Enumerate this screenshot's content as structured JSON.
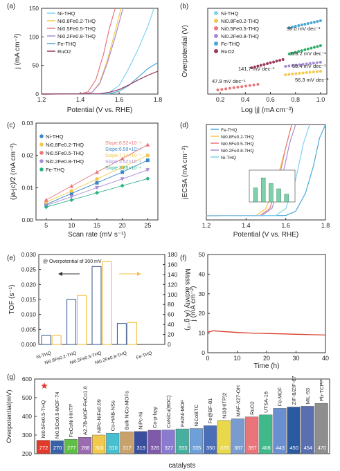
{
  "colors": {
    "ni": "#7fd3f0",
    "ni08fe02": "#f2c94c",
    "ni05fe05": "#e9747a",
    "ni02fe08": "#a78bd4",
    "fe": "#4aa8d8",
    "ruo2": "#9b3b5c",
    "tof_bar": "#2f4f8f",
    "mass_bar": "#f5c24a",
    "stability": "#d93a2a",
    "star": "#e23a2a"
  },
  "chart_data": [
    {
      "panel": "(a)",
      "type": "line",
      "xlabel": "Potential (V vs. RHE)",
      "ylabel": "j (mA cm⁻²)",
      "xlim": [
        1.2,
        1.8
      ],
      "ylim": [
        0,
        150
      ],
      "xticks": [
        "1.2",
        "1.4",
        "1.6",
        "1.8"
      ],
      "yticks": [
        "0",
        "50",
        "100",
        "150"
      ],
      "legend": "top-left",
      "series": [
        {
          "name": "Ni-THQ",
          "color": "#7fd3f0",
          "points": [
            [
              1.2,
              0
            ],
            [
              1.5,
              0.5
            ],
            [
              1.55,
              3
            ],
            [
              1.6,
              15
            ],
            [
              1.65,
              45
            ],
            [
              1.7,
              80
            ],
            [
              1.75,
              120
            ],
            [
              1.78,
              150
            ]
          ]
        },
        {
          "name": "Ni0.8Fe0.2-THQ",
          "color": "#f2c94c",
          "points": [
            [
              1.2,
              0
            ],
            [
              1.42,
              0.5
            ],
            [
              1.46,
              3
            ],
            [
              1.5,
              20
            ],
            [
              1.54,
              60
            ],
            [
              1.58,
              110
            ],
            [
              1.61,
              150
            ]
          ]
        },
        {
          "name": "Ni0.5Fe0.5-THQ",
          "color": "#e9747a",
          "points": [
            [
              1.2,
              0
            ],
            [
              1.4,
              0.5
            ],
            [
              1.44,
              4
            ],
            [
              1.48,
              25
            ],
            [
              1.52,
              70
            ],
            [
              1.55,
              115
            ],
            [
              1.58,
              150
            ]
          ]
        },
        {
          "name": "Ni0.2Fe0.8-THQ",
          "color": "#a78bd4",
          "points": [
            [
              1.2,
              0
            ],
            [
              1.42,
              0.5
            ],
            [
              1.46,
              3
            ],
            [
              1.5,
              18
            ],
            [
              1.54,
              55
            ],
            [
              1.58,
              100
            ],
            [
              1.62,
              150
            ]
          ]
        },
        {
          "name": "Fe-THQ",
          "color": "#4aa8d8",
          "points": [
            [
              1.2,
              0
            ],
            [
              1.55,
              0.5
            ],
            [
              1.6,
              5
            ],
            [
              1.65,
              15
            ],
            [
              1.7,
              30
            ],
            [
              1.75,
              45
            ],
            [
              1.8,
              55
            ]
          ]
        },
        {
          "name": "RuO2",
          "color": "#9b3b5c",
          "points": [
            [
              1.2,
              0
            ],
            [
              1.5,
              0.5
            ],
            [
              1.55,
              3
            ],
            [
              1.6,
              8
            ],
            [
              1.65,
              16
            ],
            [
              1.7,
              25
            ],
            [
              1.75,
              33
            ],
            [
              1.8,
              40
            ]
          ]
        }
      ]
    },
    {
      "panel": "(b)",
      "type": "scatter",
      "xlabel": "Log |j| (mA cm⁻²)",
      "ylabel": "Overpotential (V)",
      "xlim": [
        0.1,
        1.05
      ],
      "xticks": [
        "0.2",
        "0.4",
        "0.6",
        "0.8",
        "1.0"
      ],
      "legend": "top-left",
      "series": [
        {
          "name": "Ni-THQ",
          "color": "#7fd3f0"
        },
        {
          "name": "Ni0.8Fe0.2-THQ",
          "color": "#f2c94c"
        },
        {
          "name": "Ni0.5Fe0.5-THQ",
          "color": "#e9747a"
        },
        {
          "name": "Ni0.2Fe0.8-THQ",
          "color": "#a78bd4"
        },
        {
          "name": "Fe-THQ",
          "color": "#4aa8d8"
        },
        {
          "name": "RuO2",
          "color": "#9b3b5c"
        }
      ],
      "segments": [
        {
          "color": "#4aa8d8",
          "x": [
            0.75,
            1.0
          ],
          "label": "98.0 mV dec⁻¹"
        },
        {
          "color": "#2eae6a",
          "x": [
            0.75,
            1.0
          ],
          "label": "128.2 mV dec⁻¹"
        },
        {
          "color": "#9b3b5c",
          "x": [
            0.45,
            0.7
          ],
          "label": "141.7 mV dec⁻¹"
        },
        {
          "color": "#a78bd4",
          "x": [
            0.72,
            1.0
          ],
          "label": "58.4 mV dec⁻¹"
        },
        {
          "color": "#f2c94c",
          "x": [
            0.72,
            1.0
          ],
          "label": "56.3 mV dec⁻¹"
        },
        {
          "color": "#e9747a",
          "x": [
            0.18,
            0.5
          ],
          "label": "47.9 mV dec⁻¹"
        }
      ]
    },
    {
      "panel": "(c)",
      "type": "scatter",
      "xlabel": "Scan rate (mV s⁻¹)",
      "ylabel": "(ja-jc)/2 (mA cm⁻²)",
      "xlim": [
        3,
        27
      ],
      "ylim": [
        0,
        0.03
      ],
      "xticks": [
        "5",
        "10",
        "15",
        "20",
        "25"
      ],
      "yticks": [
        "0.00",
        "0.01",
        "0.02",
        "0.03"
      ],
      "legend": "top-left",
      "x": [
        5,
        10,
        15,
        20,
        25
      ],
      "series": [
        {
          "name": "Ni-THQ",
          "color": "#3b86c6",
          "marker": "square",
          "values": [
            0.0048,
            0.0082,
            0.0115,
            0.0148,
            0.0185
          ],
          "slope": "Slope:6.59×10⁻⁴"
        },
        {
          "name": "Ni0.8Fe0.2-THQ",
          "color": "#f2c94c",
          "marker": "circle",
          "values": [
            0.0055,
            0.009,
            0.0127,
            0.0163,
            0.02
          ],
          "slope": "Slope:7.14×10⁻⁴"
        },
        {
          "name": "Ni0.5Fe0.5-THQ",
          "color": "#e9747a",
          "marker": "triangle",
          "values": [
            0.0062,
            0.0105,
            0.0148,
            0.019,
            0.0233
          ],
          "slope": "Slope:8.52×10⁻⁴"
        },
        {
          "name": "Ni0.2Fe0.8-THQ",
          "color": "#a78bd4",
          "marker": "triangle-down",
          "values": [
            0.0045,
            0.0072,
            0.01,
            0.0127,
            0.0155
          ],
          "slope": "Slope:5.52×10⁻⁴"
        },
        {
          "name": "Fe-THQ",
          "color": "#2eae8a",
          "marker": "diamond",
          "values": [
            0.004,
            0.0062,
            0.0084,
            0.0106,
            0.0128
          ],
          "slope": "Slope:3.85×10⁻⁴"
        }
      ]
    },
    {
      "panel": "(d)",
      "type": "line",
      "xlabel": "Potential (V vs. RHE)",
      "ylabel": "jECSA (mA cm⁻²)",
      "xlim": [
        1.2,
        1.8
      ],
      "xticks": [
        "1.2",
        "1.4",
        "1.6",
        "1.8"
      ],
      "legend": "top-left",
      "series": [
        {
          "name": "Fe-THQ",
          "color": "#4aa8d8",
          "points": [
            [
              1.2,
              0
            ],
            [
              1.6,
              0.3
            ],
            [
              1.65,
              5
            ],
            [
              1.7,
              25
            ],
            [
              1.74,
              55
            ],
            [
              1.77,
              85
            ],
            [
              1.8,
              100
            ]
          ]
        },
        {
          "name": "Ni0.8Fe0.2-THQ",
          "color": "#f2c94c",
          "points": [
            [
              1.2,
              0
            ],
            [
              1.45,
              0.3
            ],
            [
              1.5,
              8
            ],
            [
              1.55,
              35
            ],
            [
              1.6,
              75
            ],
            [
              1.63,
              100
            ]
          ]
        },
        {
          "name": "Ni0.5Fe0.5-THQ",
          "color": "#e9747a",
          "points": [
            [
              1.2,
              0
            ],
            [
              1.47,
              0.3
            ],
            [
              1.52,
              8
            ],
            [
              1.56,
              35
            ],
            [
              1.6,
              75
            ],
            [
              1.63,
              100
            ]
          ]
        },
        {
          "name": "Ni0.2Fe0.8-THQ",
          "color": "#a78bd4",
          "points": [
            [
              1.2,
              0
            ],
            [
              1.48,
              0.3
            ],
            [
              1.53,
              8
            ],
            [
              1.58,
              40
            ],
            [
              1.62,
              80
            ],
            [
              1.65,
              100
            ]
          ]
        },
        {
          "name": "Ni-THQ",
          "color": "#7fd3f0",
          "points": [
            [
              1.2,
              0
            ],
            [
              1.55,
              0.3
            ],
            [
              1.6,
              8
            ],
            [
              1.65,
              40
            ],
            [
              1.69,
              80
            ],
            [
              1.72,
              100
            ]
          ]
        }
      ],
      "inset": {
        "type": "bar",
        "values": [
          3.2,
          5.5,
          4.2,
          3.0,
          1.8
        ]
      }
    },
    {
      "panel": "(e)",
      "type": "bar",
      "annotation": "@ Overpotential of 300 mV",
      "ylabel": "TOF (s⁻¹)",
      "y2label": "Mass activity (A g⁻¹)",
      "ylim": [
        0,
        0.03
      ],
      "y2lim": [
        0,
        180
      ],
      "yticks": [
        "0.000",
        "0.005",
        "0.010",
        "0.015",
        "0.020",
        "0.025",
        "0.030"
      ],
      "y2ticks": [
        "0",
        "20",
        "40",
        "60",
        "80",
        "100",
        "120",
        "140",
        "160",
        "180"
      ],
      "categories": [
        "Ni-THQ",
        "Ni0.8Fe0.2-THQ",
        "Ni0.5Fe0.5-THQ",
        "Ni0.2Fe0.8-THQ",
        "Fe-THQ"
      ],
      "series": [
        {
          "name": "TOF",
          "axis": "left",
          "values": [
            0.003,
            0.015,
            0.026,
            0.007,
            0.0
          ]
        },
        {
          "name": "Mass activity",
          "axis": "right",
          "values": [
            18,
            98,
            166,
            44,
            0
          ]
        }
      ]
    },
    {
      "panel": "(f)",
      "type": "line",
      "xlabel": "Time (h)",
      "ylabel": "j (mA cm⁻²)",
      "xlim": [
        0,
        40
      ],
      "ylim": [
        0,
        50
      ],
      "xticks": [
        "0",
        "10",
        "20",
        "30",
        "40"
      ],
      "yticks": [
        "0",
        "10",
        "20",
        "30",
        "40",
        "50"
      ],
      "series": [
        {
          "points": [
            [
              0,
              10.5
            ],
            [
              2,
              11.2
            ],
            [
              5,
              10.8
            ],
            [
              10,
              10.3
            ],
            [
              15,
              10.0
            ],
            [
              20,
              9.8
            ],
            [
              25,
              9.6
            ],
            [
              30,
              9.4
            ],
            [
              35,
              9.2
            ],
            [
              40,
              9.0
            ]
          ]
        }
      ]
    },
    {
      "panel": "(g)",
      "type": "bar",
      "xlabel": "catalysts",
      "ylabel": "Overpotential(mV)",
      "ylim": [
        200,
        600
      ],
      "yticks": [
        "200",
        "300",
        "400",
        "500",
        "600"
      ],
      "categories": [
        "Ni0.5Fe0.5-THQ",
        "Ni0.5Co0.5-MOF-74",
        "FeCoNi-HHTP",
        "A2.7B-MOF-FeCo1.6",
        "NiPc-NiFe0.09",
        "Co-HAB-NSs",
        "Bulk NiCo-MOFs",
        "NiPc-Ni",
        "Co-p-bpy",
        "CoNiCu(BDC)",
        "Fe2Ni-MOF",
        "NiCoBTC",
        "Fe@BF-81",
        "Ni3(HITP)2",
        "MAF-X27-OH",
        "RuO2",
        "UTSA-16",
        "Fe-MOF",
        "ZIF-8/ZIF-67",
        "MIL-53",
        "Pb-TCPP"
      ],
      "values": [
        272,
        270,
        277,
        288,
        300,
        310,
        317,
        319,
        326,
        327,
        333,
        335,
        350,
        378,
        387,
        397,
        408,
        443,
        450,
        454,
        470
      ],
      "colors": [
        "#e23a2a",
        "#3a60a8",
        "#5fbf45",
        "#9b6bb0",
        "#f2c94c",
        "#48bfcf",
        "#c9a26b",
        "#3a4f9c",
        "#7e5aa8",
        "#8a7bd0",
        "#46b0a0",
        "#6f9fd8",
        "#4a6fb8",
        "#e8d84a",
        "#7a9bd0",
        "#e9747a",
        "#3fb88a",
        "#6a8fd0",
        "#2b5aa0",
        "#5a6fb0",
        "#8e8e8e"
      ]
    }
  ],
  "labels": {
    "a": "(a)",
    "b": "(b)",
    "c": "(c)",
    "d": "(d)",
    "e": "(e)",
    "f": "(f)",
    "g": "(g)",
    "b_unit": "mV dec⁻¹"
  }
}
